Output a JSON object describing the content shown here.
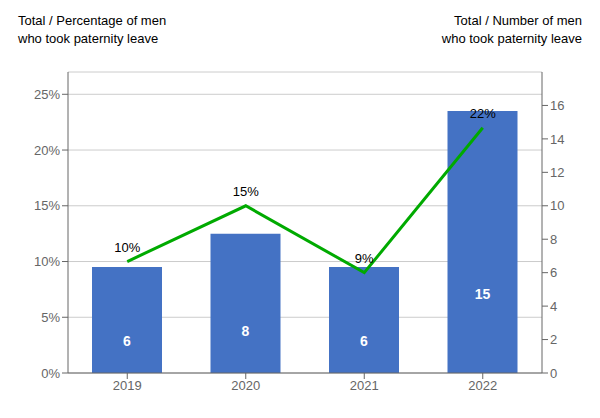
{
  "chart_data": {
    "type": "bar",
    "ylabel": "Total / Percentage of men\nwho took paternity leave",
    "y2label": "Total / Number of men\nwho took paternity leave",
    "categories": [
      "2019",
      "2020",
      "2021",
      "2022"
    ],
    "series": [
      {
        "type": "bar",
        "color": "#4472C4",
        "values": [
          9.5,
          12.5,
          9.5,
          23.5
        ],
        "counts": [
          6,
          8,
          6,
          15
        ]
      },
      {
        "type": "line",
        "color": "#00AA00",
        "values": [
          10,
          15,
          9,
          22
        ],
        "value_labels": [
          "10%",
          "15%",
          "9%",
          "22%"
        ],
        "data_labels": true
      }
    ],
    "ylim": [
      0,
      27
    ],
    "yticks": [
      {
        "value": 0,
        "label": "0%"
      },
      {
        "value": 5,
        "label": "5%"
      },
      {
        "value": 10,
        "label": "10%"
      },
      {
        "value": 15,
        "label": "15%"
      },
      {
        "value": 20,
        "label": "20%"
      },
      {
        "value": 25,
        "label": "25%"
      }
    ],
    "y2lim": [
      0,
      18
    ],
    "y2ticks": [
      0,
      2,
      4,
      6,
      8,
      10,
      12,
      14,
      16
    ],
    "grid": true
  }
}
